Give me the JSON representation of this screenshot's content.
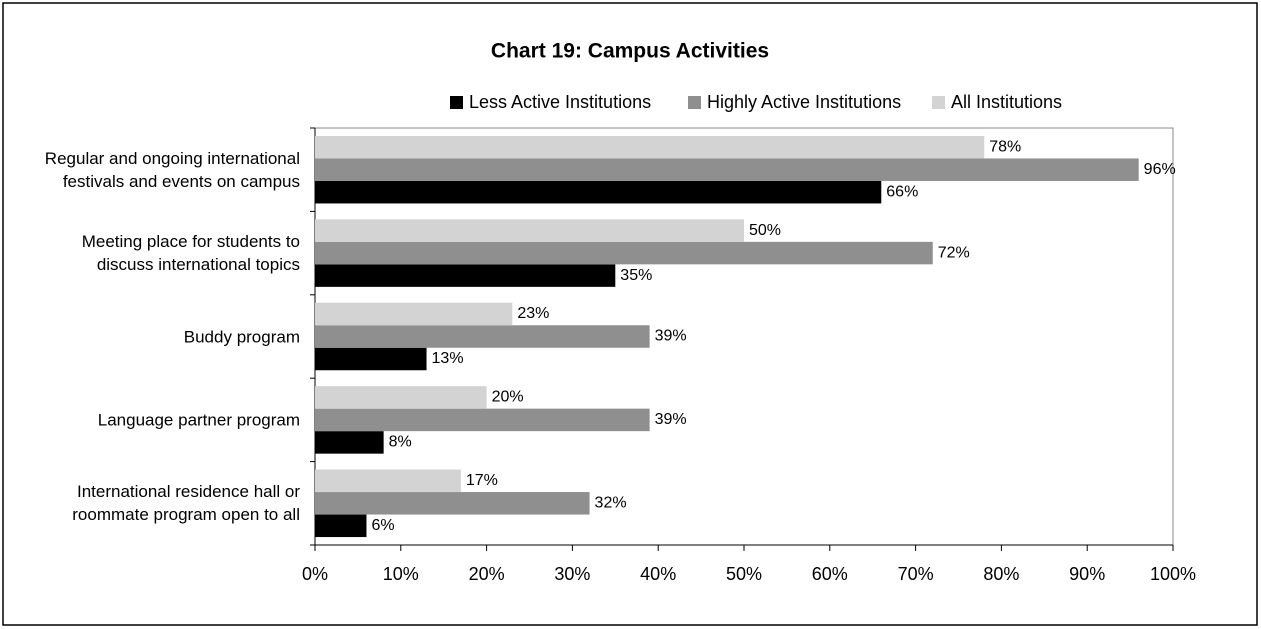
{
  "chart_data": {
    "type": "hbar",
    "title": "Chart 19: Campus Activities",
    "categories": [
      "Regular and ongoing international\nfestivals and events on campus",
      "Meeting place for students to\ndiscuss international topics",
      "Buddy program",
      "Language partner program",
      "International residence hall or\nroommate program open to all"
    ],
    "series": [
      {
        "name": "Less Active Institutions",
        "color": "#000000",
        "values": [
          66,
          35,
          13,
          8,
          6
        ],
        "value_labels": [
          "66%",
          "35%",
          "13%",
          "8%",
          "6%"
        ]
      },
      {
        "name": "Highly Active Institutions",
        "color": "#8f8f8f",
        "values": [
          96,
          72,
          39,
          39,
          32
        ],
        "value_labels": [
          "96%",
          "72%",
          "39%",
          "39%",
          "32%"
        ]
      },
      {
        "name": "All Institutions",
        "color": "#d3d3d3",
        "values": [
          78,
          50,
          23,
          20,
          17
        ],
        "value_labels": [
          "78%",
          "50%",
          "23%",
          "20%",
          "17%"
        ]
      }
    ],
    "xlim": [
      0,
      100
    ],
    "xticks": [
      {
        "value": 0,
        "label": "0%"
      },
      {
        "value": 10,
        "label": "10%"
      },
      {
        "value": 20,
        "label": "20%"
      },
      {
        "value": 30,
        "label": "30%"
      },
      {
        "value": 40,
        "label": "40%"
      },
      {
        "value": 50,
        "label": "50%"
      },
      {
        "value": 60,
        "label": "60%"
      },
      {
        "value": 70,
        "label": "70%"
      },
      {
        "value": 80,
        "label": "80%"
      },
      {
        "value": 90,
        "label": "90%"
      },
      {
        "value": 100,
        "label": "100%"
      }
    ],
    "legend": "top"
  }
}
